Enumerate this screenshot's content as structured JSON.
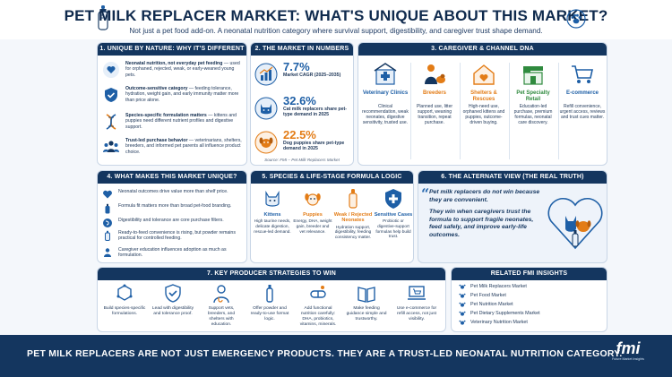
{
  "header": {
    "title": "PET MILK REPLACER MARKET: WHAT'S UNIQUE ABOUT THIS MARKET?",
    "subtitle": "Not just a pet food add-on. A neonatal nutrition category where survival support, digestibility, and caregiver trust shape demand."
  },
  "p1": {
    "title": "1. UNIQUE BY NATURE: WHY IT'S DIFFERENT",
    "items": [
      {
        "head": "Neonatal nutrition, not everyday pet feeding",
        "body": " — used for orphaned, rejected, weak, or early-weaned young pets."
      },
      {
        "head": "Outcome-sensitive category",
        "body": " — feeding tolerance, hydration, weight gain, and early immunity matter more than price alone."
      },
      {
        "head": "Species-specific formulation matters",
        "body": " — kittens and puppies need different nutrient profiles and digestive support."
      },
      {
        "head": "Trust-led purchase behavior",
        "body": " — veterinarians, shelters, breeders, and informed pet parents all influence product choice."
      }
    ]
  },
  "p2": {
    "title": "2. THE MARKET IN NUMBERS (FMI)",
    "stats": [
      {
        "num": "7.7%",
        "label": "Market CAGR (2025–2035)"
      },
      {
        "num": "32.6%",
        "label": "Cat milk replacers share pet-type demand in 2025"
      },
      {
        "num": "22.5%",
        "label": "Dog puppies share pet-type demand in 2025"
      }
    ],
    "source": "Source: FMI – Pet Milk Replacers Market"
  },
  "p3": {
    "title": "3. CAREGIVER & CHANNEL DNA",
    "cols": [
      {
        "head": "Veterinary Clinics",
        "body": "Clinical recommendation, weak neonates, digestive sensitivity, trusted use."
      },
      {
        "head": "Breeders",
        "body": "Planned use, litter support, weaning transition, repeat purchase."
      },
      {
        "head": "Shelters & Rescues",
        "body": "High-need use, orphaned kittens and puppies, outcome-driven buying."
      },
      {
        "head": "Pet Specialty Retail",
        "body": "Education-led purchase, premium formulas, neonatal care discovery."
      },
      {
        "head": "E-commerce",
        "body": "Refill convenience, urgent access, reviews and trust cues matter."
      }
    ]
  },
  "p4": {
    "title": "4. WHAT MAKES THIS MARKET UNIQUE?",
    "items": [
      "Neonatal outcomes drive value more than shelf price.",
      "Formula fit matters more than broad pet-food branding.",
      "Digestibility and tolerance are core purchase filters.",
      "Ready-to-feed convenience is rising, but powder remains practical for controlled feeding.",
      "Caregiver education influences adoption as much as formulation."
    ]
  },
  "p5": {
    "title": "5. SPECIES & LIFE-STAGE FORMULA LOGIC",
    "cols": [
      {
        "head": "Kittens",
        "body": "High taurine needs, delicate digestion, rescue-led demand."
      },
      {
        "head": "Puppies",
        "body": "Energy, DHA, weight gain, breeder and vet relevance."
      },
      {
        "head": "Weak / Rejected Neonates",
        "body": "Hydration support, digestibility, feeding consistency matter."
      },
      {
        "head": "Sensitive Cases",
        "body": "Probiotic or digestive-support formulas help build trust."
      }
    ]
  },
  "p6": {
    "title": "6. THE ALTERNATE VIEW (THE REAL TRUTH)",
    "quote1": "Pet milk replacers do not win because they are convenient.",
    "quote2": "They win when caregivers trust the formula to support fragile neonates, feed safely, and improve early-life outcomes."
  },
  "p7": {
    "title": "7. KEY PRODUCER STRATEGIES TO WIN",
    "cols": [
      "Build species-specific formulations.",
      "Lead with digestibility and tolerance proof.",
      "Support vets, breeders, and shelters with education.",
      "Offer powder and ready-to-use format logic.",
      "Add functional nutrition carefully: DHA, probiotics, vitamins, minerals.",
      "Make feeding guidance simple and trustworthy.",
      "Use e-commerce for refill access, not just visibility."
    ]
  },
  "p8": {
    "title": "RELATED FMI INSIGHTS",
    "items": [
      "Pet Milk Replacers Market",
      "Pet Food Market",
      "Pet Nutrition Market",
      "Pet Dietary Supplements Market",
      "Veterinary Nutrition Market"
    ]
  },
  "banner": {
    "text": "PET MILK REPLACERS ARE NOT JUST EMERGENCY PRODUCTS. THEY ARE A TRUST-LED NEONATAL NUTRITION CATEGORY.",
    "logo": "fmi",
    "logo_sub": "Future Market Insights"
  },
  "colors": {
    "navy": "#14365f",
    "blue": "#1e5fa6",
    "orange": "#e37c16"
  }
}
